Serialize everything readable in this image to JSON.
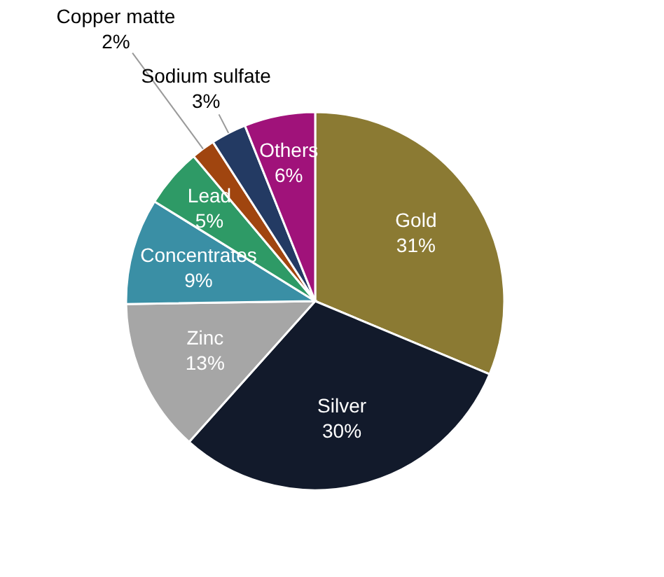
{
  "chart_data": {
    "type": "pie",
    "categories": [
      "Gold",
      "Silver",
      "Zinc",
      "Concentrates",
      "Lead",
      "Copper matte",
      "Sodium sulfate",
      "Others"
    ],
    "values": [
      31,
      30,
      13,
      9,
      5,
      2,
      3,
      6
    ],
    "colors": [
      "#8b7a33",
      "#121a2b",
      "#a6a6a6",
      "#3a8fa5",
      "#2e9a66",
      "#a0450f",
      "#233a63",
      "#a0127a"
    ],
    "value_labels": [
      "31%",
      "30%",
      "13%",
      "9%",
      "5%",
      "2%",
      "3%",
      "6%"
    ],
    "data_labels": true,
    "legend": false
  }
}
